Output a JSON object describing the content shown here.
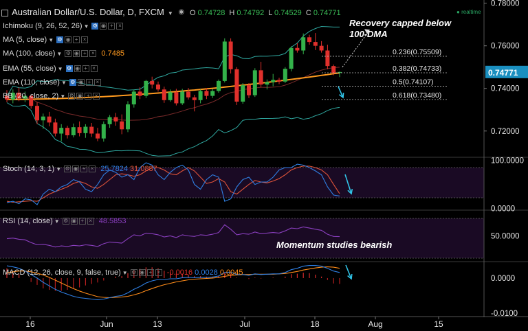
{
  "header": {
    "symbol_title": "Australian Dollar/U.S. Dollar, D, FXCM",
    "ohlc": [
      {
        "label": "O",
        "value": "0.74728"
      },
      {
        "label": "H",
        "value": "0.74792"
      },
      {
        "label": "L",
        "value": "0.74529"
      },
      {
        "label": "C",
        "value": "0.74771"
      }
    ],
    "realtime_label": "realtime"
  },
  "indicators": {
    "ichimoku": "Ichimoku (9, 26, 52, 26)",
    "ma5": "MA (5, close)",
    "ma100": "MA (100, close)",
    "ma100_value": "0.7485",
    "ema55": "EMA (55, close)",
    "ema110": "EMA (110, close)",
    "bb": "BB (20, close, 2)",
    "stoch": "Stoch (14, 3, 1)",
    "stoch_values": [
      "25.7824",
      "31.0887"
    ],
    "rsi": "RSI (14, close)",
    "rsi_value": "48.5853",
    "macd": "MACD (12, 26, close, 9, false, true)",
    "macd_values": [
      "-0.0016",
      "0.0028",
      "0.0045"
    ]
  },
  "annotations": {
    "top": "Recovery capped below 100-DMA",
    "rsi": "Momentum studies bearish"
  },
  "colors": {
    "background": "#000000",
    "up_candle": "#33b24a",
    "down_candle": "#e0302c",
    "ma100_line": "#ff9a1f",
    "bollinger": "#2fa8a0",
    "last_price_tag": "#1a8fc0",
    "stoch_k": "#2f7fe3",
    "stoch_d": "#e0543a",
    "rsi_line": "#8a3fbf",
    "macd_line": "#2f7fe3",
    "signal_line": "#ff8c1a",
    "arrow": "#31c4e8",
    "indicator_band": "#1a0a24"
  },
  "chart_data": [
    {
      "type": "candlestick",
      "x_ticks": [
        "16",
        "Jun",
        "13",
        "Jul",
        "18",
        "Aug",
        "15"
      ],
      "y_ticks": [
        "0.78000",
        "0.76000",
        "0.74000",
        "0.72000"
      ],
      "ylim": [
        0.708,
        0.7815
      ],
      "last_price": "0.74771",
      "fib_levels": [
        {
          "label": "0.236(0.75509)",
          "value": 0.75509
        },
        {
          "label": "0.382(0.74733)",
          "value": 0.74733
        },
        {
          "label": "0.5(0.74107)",
          "value": 0.74107
        },
        {
          "label": "0.618(0.73480)",
          "value": 0.7348
        }
      ],
      "ohlc": [
        [
          0.7365,
          0.7392,
          0.7335,
          0.7348
        ],
        [
          0.7348,
          0.7395,
          0.733,
          0.738
        ],
        [
          0.738,
          0.7405,
          0.734,
          0.7352
        ],
        [
          0.7352,
          0.7385,
          0.7335,
          0.7365
        ],
        [
          0.7365,
          0.7372,
          0.7305,
          0.7318
        ],
        [
          0.7318,
          0.7335,
          0.7232,
          0.725
        ],
        [
          0.725,
          0.7282,
          0.721,
          0.7268
        ],
        [
          0.7268,
          0.729,
          0.7222,
          0.724
        ],
        [
          0.724,
          0.7258,
          0.7175,
          0.7188
        ],
        [
          0.7188,
          0.7232,
          0.7152,
          0.7215
        ],
        [
          0.7215,
          0.7225,
          0.7165,
          0.718
        ],
        [
          0.718,
          0.7235,
          0.717,
          0.7218
        ],
        [
          0.7218,
          0.7245,
          0.7175,
          0.719
        ],
        [
          0.719,
          0.7232,
          0.7168,
          0.722
        ],
        [
          0.722,
          0.7238,
          0.7172,
          0.7188
        ],
        [
          0.7188,
          0.7215,
          0.7152,
          0.7165
        ],
        [
          0.7165,
          0.7245,
          0.715,
          0.7232
        ],
        [
          0.7232,
          0.7275,
          0.7215,
          0.7265
        ],
        [
          0.7265,
          0.7285,
          0.7225,
          0.7245
        ],
        [
          0.7245,
          0.7278,
          0.7185,
          0.7208
        ],
        [
          0.7208,
          0.734,
          0.7195,
          0.7325
        ],
        [
          0.7325,
          0.7395,
          0.731,
          0.7385
        ],
        [
          0.7385,
          0.7405,
          0.735,
          0.7365
        ],
        [
          0.7365,
          0.744,
          0.7355,
          0.7435
        ],
        [
          0.7435,
          0.7455,
          0.74,
          0.7418
        ],
        [
          0.7418,
          0.7432,
          0.7385,
          0.7395
        ],
        [
          0.7395,
          0.7408,
          0.7332,
          0.7345
        ],
        [
          0.7345,
          0.7395,
          0.7338,
          0.7382
        ],
        [
          0.7382,
          0.7398,
          0.732,
          0.733
        ],
        [
          0.733,
          0.7398,
          0.7322,
          0.7385
        ],
        [
          0.7385,
          0.7402,
          0.7348,
          0.7358
        ],
        [
          0.7358,
          0.737,
          0.7292,
          0.7345
        ],
        [
          0.7345,
          0.7395,
          0.733,
          0.7388
        ],
        [
          0.7388,
          0.7402,
          0.735,
          0.7365
        ],
        [
          0.7365,
          0.7398,
          0.7355,
          0.7388
        ],
        [
          0.7388,
          0.7442,
          0.738,
          0.7435
        ],
        [
          0.7435,
          0.7635,
          0.7428,
          0.762
        ],
        [
          0.762,
          0.7635,
          0.747,
          0.749
        ],
        [
          0.749,
          0.75,
          0.7322,
          0.7338
        ],
        [
          0.7338,
          0.7425,
          0.7328,
          0.7415
        ],
        [
          0.7415,
          0.7425,
          0.7355,
          0.7368
        ],
        [
          0.7368,
          0.7495,
          0.736,
          0.7485
        ],
        [
          0.7485,
          0.7525,
          0.7405,
          0.7418
        ],
        [
          0.7418,
          0.7442,
          0.7395,
          0.743
        ],
        [
          0.743,
          0.7468,
          0.741,
          0.744
        ],
        [
          0.744,
          0.745,
          0.742,
          0.7432
        ],
        [
          0.7432,
          0.75,
          0.7425,
          0.7492
        ],
        [
          0.7492,
          0.7598,
          0.748,
          0.759
        ],
        [
          0.759,
          0.7612,
          0.7568,
          0.7578
        ],
        [
          0.7578,
          0.7658,
          0.756,
          0.764
        ],
        [
          0.764,
          0.7652,
          0.7605,
          0.7618
        ],
        [
          0.7618,
          0.766,
          0.758,
          0.76
        ],
        [
          0.76,
          0.7622,
          0.7568,
          0.7578
        ],
        [
          0.7578,
          0.7605,
          0.749,
          0.7505
        ],
        [
          0.7505,
          0.7512,
          0.7462,
          0.7473
        ],
        [
          0.7473,
          0.7479,
          0.7453,
          0.7477
        ]
      ]
    },
    {
      "type": "line",
      "name": "Stoch",
      "y_ticks": [
        "100.0000",
        "0.0000"
      ],
      "ylim": [
        -2,
        105
      ],
      "k": [
        12,
        15,
        10,
        20,
        18,
        8,
        30,
        40,
        35,
        45,
        50,
        60,
        55,
        40,
        35,
        50,
        70,
        80,
        75,
        65,
        70,
        60,
        85,
        95,
        90,
        70,
        60,
        75,
        85,
        90,
        80,
        50,
        40,
        60,
        70,
        65,
        15,
        20,
        45,
        60,
        65,
        50,
        55,
        55,
        65,
        80,
        85,
        85,
        92,
        90,
        85,
        78,
        70,
        45,
        28,
        26
      ],
      "d": [
        15,
        13,
        14,
        15,
        16,
        15,
        22,
        30,
        35,
        40,
        45,
        52,
        56,
        52,
        45,
        42,
        50,
        60,
        70,
        72,
        70,
        67,
        70,
        78,
        85,
        85,
        80,
        72,
        70,
        78,
        85,
        78,
        65,
        52,
        55,
        62,
        55,
        35,
        30,
        40,
        50,
        58,
        55,
        53,
        57,
        62,
        70,
        80,
        85,
        88,
        88,
        85,
        80,
        70,
        50,
        31
      ]
    },
    {
      "type": "line",
      "name": "RSI",
      "y_ticks": [
        "50.0000"
      ],
      "ylim": [
        5,
        95
      ],
      "values": [
        45,
        46,
        44,
        43,
        38,
        34,
        35,
        33,
        30,
        32,
        31,
        33,
        32,
        34,
        33,
        31,
        36,
        39,
        38,
        37,
        45,
        52,
        50,
        55,
        54,
        52,
        48,
        50,
        47,
        52,
        50,
        49,
        52,
        51,
        53,
        56,
        70,
        62,
        52,
        54,
        53,
        57,
        54,
        55,
        56,
        55,
        59,
        64,
        63,
        66,
        64,
        62,
        60,
        53,
        49,
        48.6
      ]
    },
    {
      "type": "line",
      "name": "MACD",
      "y_ticks": [
        "0.0000",
        "-0.0100"
      ],
      "ylim": [
        -0.0108,
        0.0045
      ],
      "macd": [
        0.0035,
        0.0032,
        0.0028,
        0.002,
        0.001,
        0.0,
        -0.0012,
        -0.0022,
        -0.0032,
        -0.004,
        -0.0046,
        -0.0052,
        -0.0056,
        -0.0058,
        -0.006,
        -0.0062,
        -0.006,
        -0.0056,
        -0.0052,
        -0.005,
        -0.0042,
        -0.0032,
        -0.0024,
        -0.0014,
        -0.0008,
        -0.0004,
        -0.0004,
        -0.0002,
        -0.0002,
        0.0001,
        0.0002,
        0.0001,
        0.0002,
        0.0002,
        0.0003,
        0.0006,
        0.0016,
        0.0017,
        0.001,
        0.001,
        0.0008,
        0.0012,
        0.001,
        0.0011,
        0.0012,
        0.0012,
        0.0016,
        0.0024,
        0.0028,
        0.0034,
        0.0036,
        0.0036,
        0.0034,
        0.0028,
        0.002,
        0.0016
      ],
      "signal": [
        0.0015,
        0.0018,
        0.002,
        0.002,
        0.0018,
        0.0014,
        0.0009,
        0.0002,
        -0.0006,
        -0.0014,
        -0.0022,
        -0.003,
        -0.0037,
        -0.0043,
        -0.0048,
        -0.0053,
        -0.0055,
        -0.0056,
        -0.0055,
        -0.0054,
        -0.0052,
        -0.0048,
        -0.0043,
        -0.0036,
        -0.003,
        -0.0024,
        -0.0019,
        -0.0015,
        -0.0011,
        -0.0008,
        -0.0005,
        -0.0003,
        -0.0002,
        -0.0001,
        0.0,
        0.0002,
        0.0005,
        0.0008,
        0.0009,
        0.001,
        0.001,
        0.0011,
        0.0011,
        0.0011,
        0.0011,
        0.0012,
        0.0013,
        0.0016,
        0.0019,
        0.0023,
        0.0026,
        0.0029,
        0.0031,
        0.0032,
        0.0031,
        0.0028
      ]
    }
  ]
}
